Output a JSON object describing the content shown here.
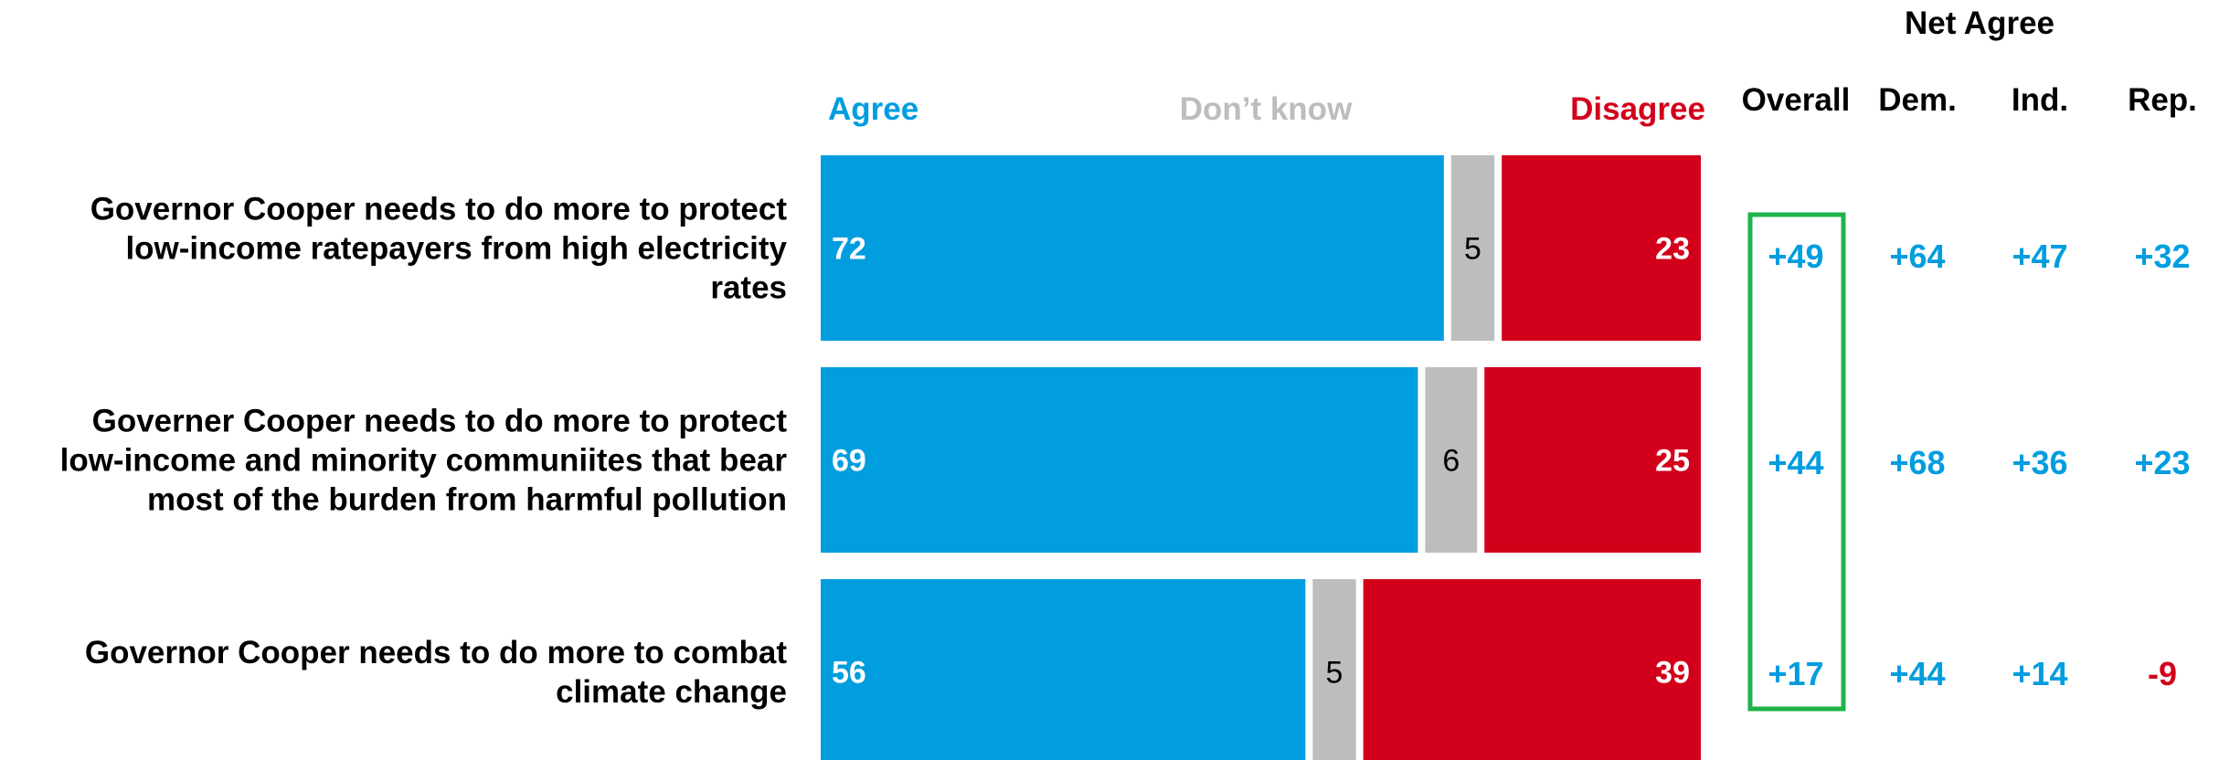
{
  "chart_data": {
    "type": "bar",
    "stacked": true,
    "orientation": "horizontal",
    "legend": {
      "agree": "Agree",
      "dont_know": "Don’t know",
      "disagree": "Disagree"
    },
    "colors": {
      "agree": "#009ddf",
      "dont_know": "#bdbdbd",
      "disagree": "#d2001a",
      "positive": "#009ddf",
      "negative": "#d2001a",
      "highlight_box": "#1db34a"
    },
    "categories": [
      "Governor Cooper needs to do more to protect low-income ratepayers from high electricity rates",
      "Governer Cooper needs to do more to protect low-income and minority communiites that bear most of the burden from harmful pollution",
      "Governor Cooper needs to do more to combat climate change"
    ],
    "category_lines": [
      [
        "Governor Cooper needs to do more to protect",
        "low-income ratepayers from high electricity",
        "rates"
      ],
      [
        "Governer Cooper needs to do more to protect",
        "low-income and minority communiites that bear",
        "most of the burden from harmful pollution"
      ],
      [
        "Governor Cooper needs to do more to combat",
        "climate change"
      ]
    ],
    "series": [
      {
        "name": "Agree",
        "values": [
          72,
          69,
          56
        ]
      },
      {
        "name": "Don’t know",
        "values": [
          5,
          6,
          5
        ]
      },
      {
        "name": "Disagree",
        "values": [
          23,
          25,
          39
        ]
      }
    ],
    "net_agree": {
      "title": "Net Agree",
      "columns": [
        "Overall",
        "Dem.",
        "Ind.",
        "Rep."
      ],
      "rows": [
        [
          "+49",
          "+64",
          "+47",
          "+32"
        ],
        [
          "+44",
          "+68",
          "+36",
          "+23"
        ],
        [
          "+17",
          "+44",
          "+14",
          "-9"
        ]
      ],
      "highlighted_column": "Overall"
    }
  }
}
